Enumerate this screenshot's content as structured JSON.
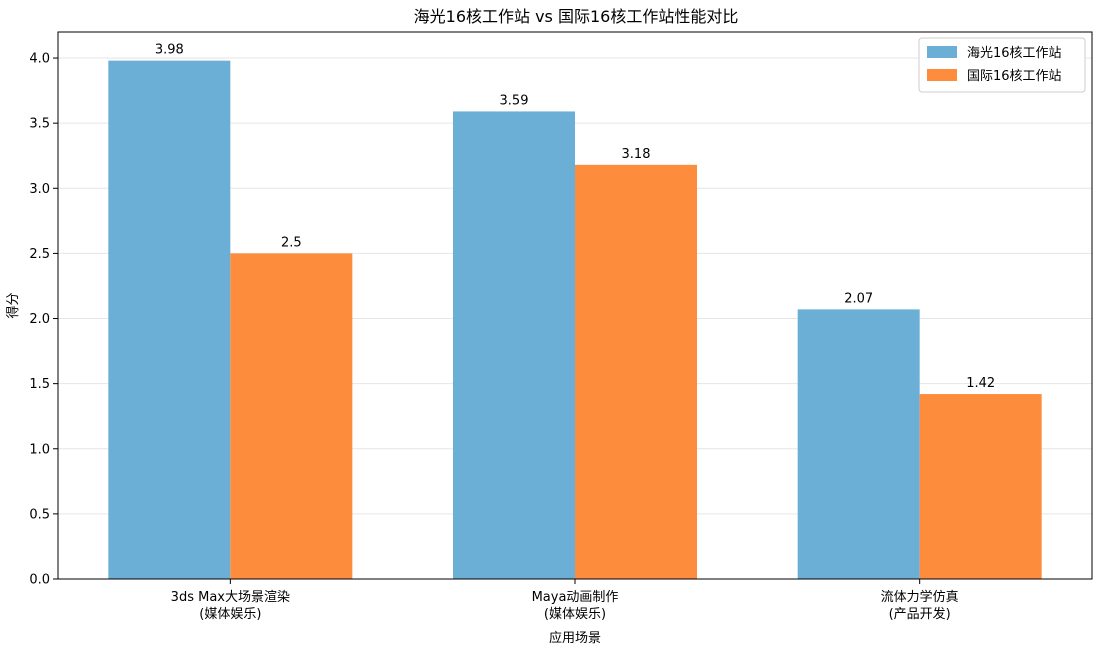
{
  "chart_data": {
    "type": "bar",
    "title": "海光16核工作站 vs 国际16核工作站性能对比",
    "xlabel": "应用场景",
    "ylabel": "得分",
    "categories": [
      [
        "3ds Max大场景渲染",
        "(媒体娱乐)"
      ],
      [
        "Maya动画制作",
        "(媒体娱乐)"
      ],
      [
        "流体力学仿真",
        "(产品开发)"
      ]
    ],
    "series": [
      {
        "name": "海光16核工作站",
        "color": "#6baed6",
        "values": [
          3.98,
          3.59,
          2.07
        ],
        "labels": [
          "3.98",
          "3.59",
          "2.07"
        ]
      },
      {
        "name": "国际16核工作站",
        "color": "#fd8d3c",
        "values": [
          2.5,
          3.18,
          1.42
        ],
        "labels": [
          "2.5",
          "3.18",
          "1.42"
        ]
      }
    ],
    "ylim": [
      0,
      4.2
    ],
    "yticks": [
      "0.0",
      "0.5",
      "1.0",
      "1.5",
      "2.0",
      "2.5",
      "3.0",
      "3.5",
      "4.0"
    ],
    "grid": "horizontal",
    "legend_position": "top-right"
  }
}
